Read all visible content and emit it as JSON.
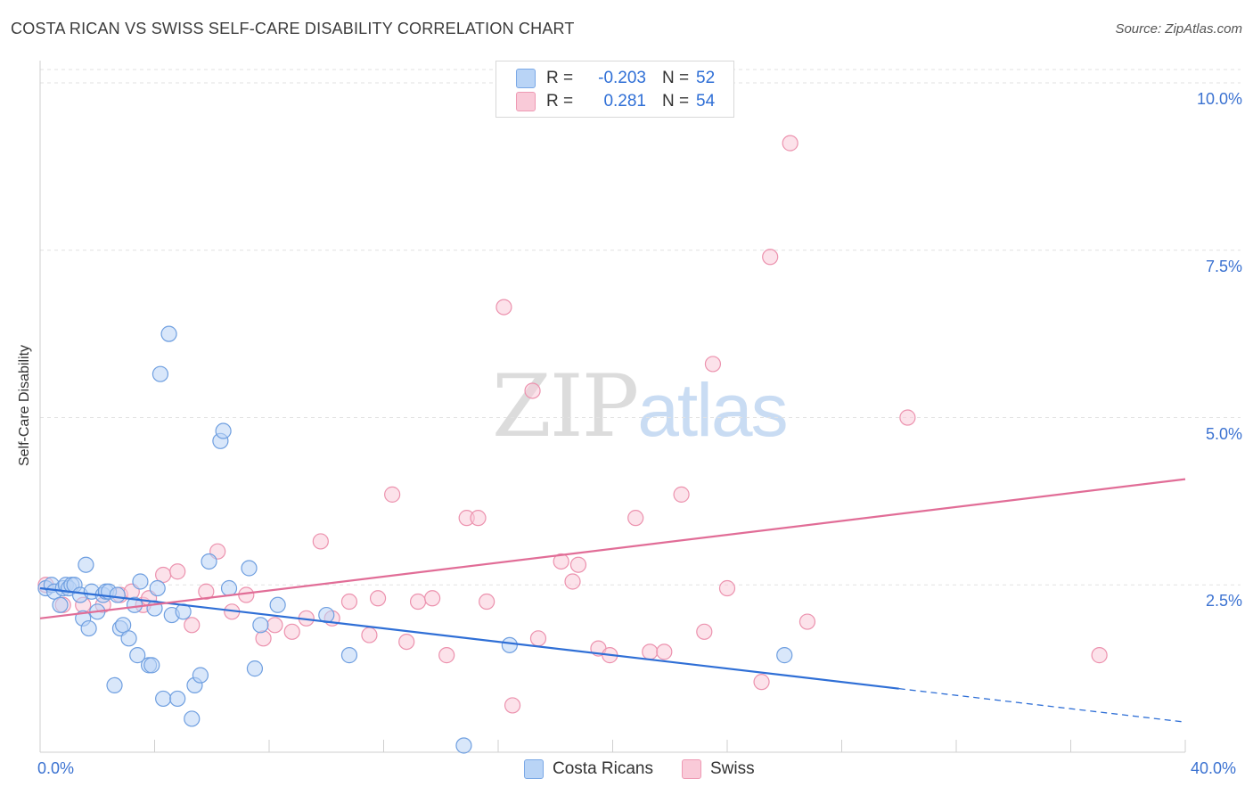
{
  "header": {
    "title": "COSTA RICAN VS SWISS SELF-CARE DISABILITY CORRELATION CHART",
    "source": "Source: ZipAtlas.com"
  },
  "legend": {
    "blue": {
      "r_label": "R =",
      "r_value": "-0.203",
      "n_label": "N =",
      "n_value": "52"
    },
    "pink": {
      "r_label": "R =",
      "r_value": "0.281",
      "n_label": "N =",
      "n_value": "54"
    }
  },
  "bottom_legend": {
    "blue": "Costa Ricans",
    "pink": "Swiss"
  },
  "watermark": {
    "zip": "ZIP",
    "atlas": "atlas"
  },
  "colors": {
    "blue_fill": "#b9d4f6",
    "blue_stroke": "#6f9fe0",
    "blue_line": "#2f6fd6",
    "pink_fill": "#f9cad8",
    "pink_stroke": "#ec92ae",
    "pink_line": "#e16d97",
    "grid": "#e2e2e2",
    "tick_label": "#3b72d1"
  },
  "chart_data": {
    "type": "scatter",
    "title": "COSTA RICAN VS SWISS SELF-CARE DISABILITY CORRELATION CHART",
    "xlabel": "",
    "ylabel": "Self-Care Disability",
    "xlim": [
      0,
      40
    ],
    "ylim": [
      0,
      10.2
    ],
    "x_tick_labels": [
      "0.0%",
      "40.0%"
    ],
    "y_ticks": [
      2.5,
      5.0,
      7.5,
      10.0
    ],
    "y_tick_labels": [
      "2.5%",
      "5.0%",
      "7.5%",
      "10.0%"
    ],
    "grid": true,
    "series": [
      {
        "name": "Costa Ricans",
        "r": -0.203,
        "n": 52,
        "trend": {
          "x0": 0,
          "y0": 2.45,
          "x1": 30.0,
          "y1": 0.95,
          "dashed_to_x": 40,
          "dashed_to_y": 0.45
        },
        "points": [
          [
            0.2,
            2.45
          ],
          [
            0.4,
            2.5
          ],
          [
            0.5,
            2.4
          ],
          [
            0.7,
            2.2
          ],
          [
            0.8,
            2.45
          ],
          [
            0.9,
            2.5
          ],
          [
            1.0,
            2.45
          ],
          [
            1.1,
            2.5
          ],
          [
            1.2,
            2.5
          ],
          [
            1.4,
            2.35
          ],
          [
            1.5,
            2.0
          ],
          [
            1.6,
            2.8
          ],
          [
            1.7,
            1.85
          ],
          [
            1.8,
            2.4
          ],
          [
            2.0,
            2.1
          ],
          [
            2.2,
            2.35
          ],
          [
            2.3,
            2.4
          ],
          [
            2.4,
            2.4
          ],
          [
            2.6,
            1.0
          ],
          [
            2.7,
            2.35
          ],
          [
            2.8,
            1.85
          ],
          [
            2.9,
            1.9
          ],
          [
            3.1,
            1.7
          ],
          [
            3.3,
            2.2
          ],
          [
            3.4,
            1.45
          ],
          [
            3.5,
            2.55
          ],
          [
            3.8,
            1.3
          ],
          [
            3.9,
            1.3
          ],
          [
            4.0,
            2.15
          ],
          [
            4.1,
            2.45
          ],
          [
            4.2,
            5.65
          ],
          [
            4.3,
            0.8
          ],
          [
            4.5,
            6.25
          ],
          [
            4.6,
            2.05
          ],
          [
            4.8,
            0.8
          ],
          [
            5.0,
            2.1
          ],
          [
            5.3,
            0.5
          ],
          [
            5.4,
            1.0
          ],
          [
            5.6,
            1.15
          ],
          [
            5.9,
            2.85
          ],
          [
            6.3,
            4.65
          ],
          [
            6.4,
            4.8
          ],
          [
            6.6,
            2.45
          ],
          [
            7.3,
            2.75
          ],
          [
            7.5,
            1.25
          ],
          [
            7.7,
            1.9
          ],
          [
            8.3,
            2.2
          ],
          [
            10.0,
            2.05
          ],
          [
            10.8,
            1.45
          ],
          [
            14.8,
            0.1
          ],
          [
            16.4,
            1.6
          ],
          [
            26.0,
            1.45
          ]
        ]
      },
      {
        "name": "Swiss",
        "r": 0.281,
        "n": 54,
        "trend": {
          "x0": 0,
          "y0": 2.0,
          "x1": 40,
          "y1": 4.08
        },
        "points": [
          [
            0.2,
            2.5
          ],
          [
            0.8,
            2.2
          ],
          [
            1.5,
            2.2
          ],
          [
            2.2,
            2.2
          ],
          [
            2.8,
            2.35
          ],
          [
            3.2,
            2.4
          ],
          [
            3.6,
            2.2
          ],
          [
            3.8,
            2.3
          ],
          [
            4.3,
            2.65
          ],
          [
            4.8,
            2.7
          ],
          [
            5.3,
            1.9
          ],
          [
            5.8,
            2.4
          ],
          [
            6.2,
            3.0
          ],
          [
            6.7,
            2.1
          ],
          [
            7.2,
            2.35
          ],
          [
            7.8,
            1.7
          ],
          [
            8.2,
            1.9
          ],
          [
            8.8,
            1.8
          ],
          [
            9.3,
            2.0
          ],
          [
            9.8,
            3.15
          ],
          [
            10.2,
            2.0
          ],
          [
            10.8,
            2.25
          ],
          [
            11.5,
            1.75
          ],
          [
            11.8,
            2.3
          ],
          [
            12.3,
            3.85
          ],
          [
            12.8,
            1.65
          ],
          [
            13.2,
            2.25
          ],
          [
            13.7,
            2.3
          ],
          [
            14.2,
            1.45
          ],
          [
            14.9,
            3.5
          ],
          [
            15.3,
            3.5
          ],
          [
            15.6,
            2.25
          ],
          [
            16.2,
            6.65
          ],
          [
            16.5,
            0.7
          ],
          [
            17.2,
            5.4
          ],
          [
            17.4,
            1.7
          ],
          [
            18.2,
            2.85
          ],
          [
            18.6,
            2.55
          ],
          [
            18.8,
            2.8
          ],
          [
            19.5,
            1.55
          ],
          [
            19.9,
            1.45
          ],
          [
            20.8,
            3.5
          ],
          [
            21.3,
            1.5
          ],
          [
            21.8,
            1.5
          ],
          [
            22.4,
            3.85
          ],
          [
            23.2,
            1.8
          ],
          [
            23.5,
            5.8
          ],
          [
            24.0,
            2.45
          ],
          [
            25.2,
            1.05
          ],
          [
            25.5,
            7.4
          ],
          [
            26.2,
            9.1
          ],
          [
            26.8,
            1.95
          ],
          [
            30.3,
            5.0
          ],
          [
            37.0,
            1.45
          ]
        ]
      }
    ]
  }
}
